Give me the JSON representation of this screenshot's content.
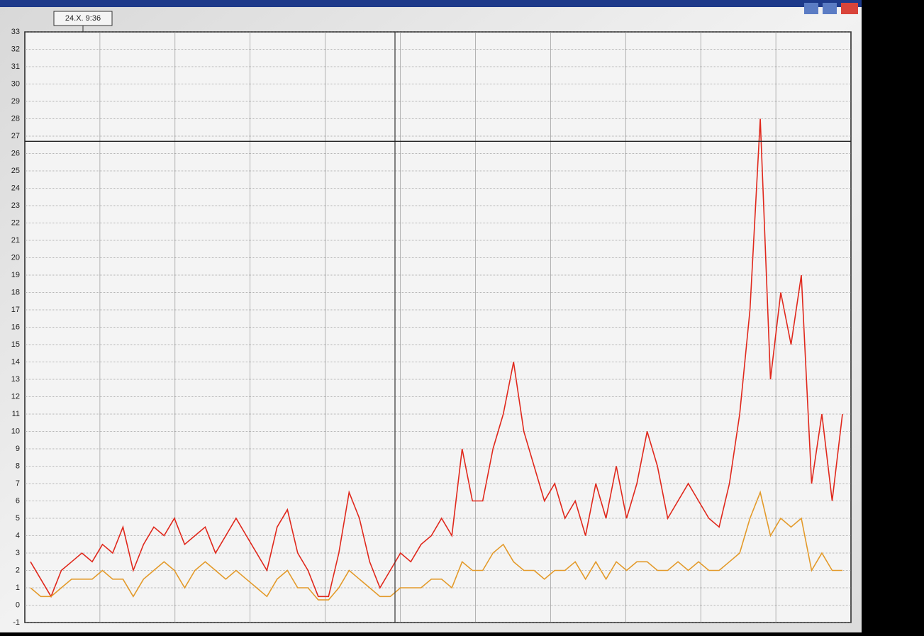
{
  "chart_data": {
    "type": "line",
    "annotation": "24.X. 9:36",
    "categories": [
      null,
      null,
      null,
      null,
      null,
      null,
      null,
      null,
      null,
      null,
      null,
      null,
      null,
      null,
      null,
      null,
      null,
      null,
      null,
      null,
      null,
      null,
      null,
      null,
      null,
      null,
      null,
      null,
      null,
      null,
      null,
      null,
      null,
      null,
      null,
      null,
      null,
      null,
      null,
      null,
      null,
      null,
      null,
      null,
      null,
      null,
      null,
      null,
      null,
      null,
      null,
      null,
      null,
      null,
      null,
      null,
      null,
      null,
      null,
      null,
      null,
      null,
      null,
      null,
      null,
      null,
      null,
      null,
      null,
      null,
      null,
      null,
      null,
      null,
      null,
      null,
      null,
      null,
      null,
      null
    ],
    "series": [
      {
        "color": "#e0281c",
        "values": [
          2.5,
          1.5,
          0.5,
          2,
          2.5,
          3,
          2.5,
          3.5,
          3,
          4.5,
          2,
          3.5,
          4.5,
          4,
          5,
          3.5,
          4,
          4.5,
          3,
          4,
          5,
          4,
          3,
          2,
          4.5,
          5.5,
          3,
          2,
          0.5,
          0.5,
          3,
          6.5,
          5,
          2.5,
          1,
          2,
          3,
          2.5,
          3.5,
          4,
          5,
          4,
          9,
          6,
          6,
          9,
          11,
          14,
          10,
          8,
          6,
          7,
          5,
          6,
          4,
          7,
          5,
          8,
          5,
          7,
          10,
          8,
          5,
          6,
          7,
          6,
          5,
          4.5,
          7,
          11,
          17,
          28,
          13,
          18,
          15,
          19,
          7,
          11,
          6,
          11
        ]
      },
      {
        "color": "#e39a2a",
        "values": [
          1,
          0.5,
          0.5,
          1,
          1.5,
          1.5,
          1.5,
          2,
          1.5,
          1.5,
          0.5,
          1.5,
          2,
          2.5,
          2,
          1,
          2,
          2.5,
          2,
          1.5,
          2,
          1.5,
          1,
          0.5,
          1.5,
          2,
          1,
          1,
          0.3,
          0.3,
          1,
          2,
          1.5,
          1,
          0.5,
          0.5,
          1,
          1,
          1,
          1.5,
          1.5,
          1,
          2.5,
          2,
          2,
          3,
          3.5,
          2.5,
          2,
          2,
          1.5,
          2,
          2,
          2.5,
          1.5,
          2.5,
          1.5,
          2.5,
          2,
          2.5,
          2.5,
          2,
          2,
          2.5,
          2,
          2.5,
          2,
          2,
          2.5,
          3,
          5,
          6.5,
          4,
          5,
          4.5,
          5,
          2,
          3,
          2,
          2
        ]
      }
    ],
    "ylim": [
      -1,
      33
    ],
    "yticks": [
      -1,
      0,
      1,
      2,
      3,
      4,
      5,
      6,
      7,
      8,
      9,
      10,
      11,
      12,
      13,
      14,
      15,
      16,
      17,
      18,
      19,
      20,
      21,
      22,
      23,
      24,
      25,
      26,
      27,
      28,
      29,
      30,
      31,
      32,
      33
    ],
    "grid": true
  }
}
